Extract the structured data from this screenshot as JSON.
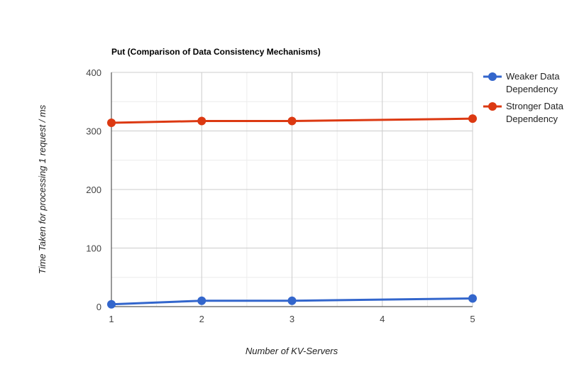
{
  "chart_data": {
    "type": "line",
    "title": "Put (Comparison of Data Consistency Mechanisms)",
    "xlabel": "Number of KV-Servers",
    "ylabel": "Time Taken for processing 1 request / ms",
    "x": [
      1,
      2,
      3,
      5
    ],
    "x_ticks": [
      "1",
      "2",
      "3",
      "4",
      "5"
    ],
    "xlim": [
      1,
      5
    ],
    "y_ticks": [
      "0",
      "100",
      "200",
      "300",
      "400"
    ],
    "ylim": [
      0,
      400
    ],
    "grid": true,
    "legend_position": "right",
    "series": [
      {
        "name_lines": [
          "Weaker Data",
          "Dependency"
        ],
        "color": "#3366cc",
        "values": [
          4,
          10,
          10,
          14
        ]
      },
      {
        "name_lines": [
          "Stronger Data",
          "Dependency"
        ],
        "color": "#dc3912",
        "values": [
          314,
          317,
          317,
          321
        ]
      }
    ]
  }
}
